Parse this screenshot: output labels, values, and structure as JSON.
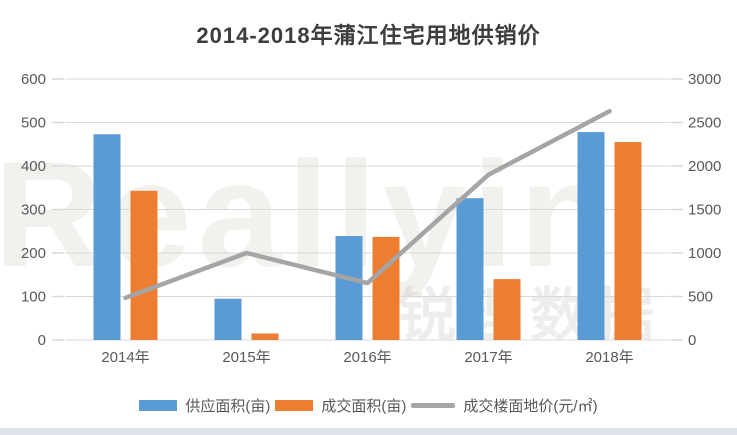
{
  "watermark": {
    "latin": "Reallyin",
    "cn": "锐理数据"
  },
  "colors": {
    "bar_supply": "#5B9BD5",
    "bar_deal": "#ED7D31",
    "line_price": "#A5A5A5",
    "gridline": "#D9D9D9",
    "tick": "#D9D9D9",
    "axis_text": "#595959",
    "title_text": "#3D3D3D",
    "bottom_strip": "#DFE4EC"
  },
  "chart_data": {
    "type": "bar+line",
    "title": "2014-2018年蒲江住宅用地供销价",
    "categories": [
      "2014年",
      "2015年",
      "2016年",
      "2017年",
      "2018年"
    ],
    "series": [
      {
        "name": "供应面积(亩)",
        "type": "bar",
        "axis": "left",
        "color": "#5B9BD5",
        "values": [
          473,
          95,
          239,
          326,
          478
        ]
      },
      {
        "name": "成交面积(亩)",
        "type": "bar",
        "axis": "left",
        "color": "#ED7D31",
        "values": [
          343,
          15,
          237,
          140,
          455
        ]
      },
      {
        "name": "成交楼面地价(元/㎡)",
        "type": "line",
        "axis": "right",
        "color": "#A5A5A5",
        "values": [
          485,
          1000,
          655,
          1900,
          2630
        ]
      }
    ],
    "left_axis": {
      "min": 0,
      "max": 600,
      "step": 100,
      "ticks": [
        0,
        100,
        200,
        300,
        400,
        500,
        600
      ]
    },
    "right_axis": {
      "min": 0,
      "max": 3000,
      "step": 500,
      "ticks": [
        0,
        500,
        1000,
        1500,
        2000,
        2500,
        3000
      ]
    },
    "grid": true,
    "legend_position": "bottom"
  }
}
